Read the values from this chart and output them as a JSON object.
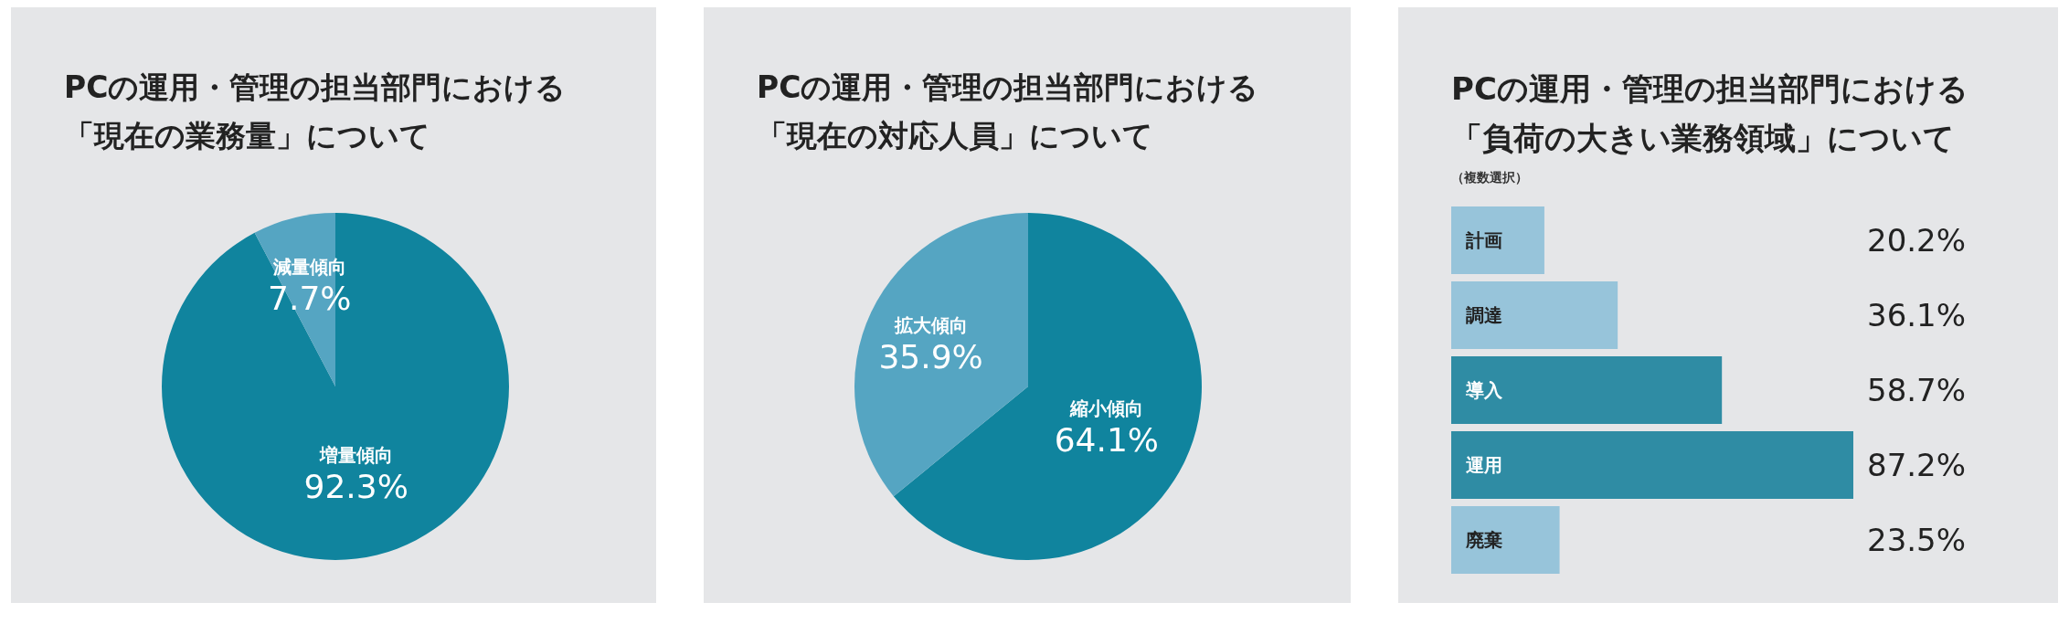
{
  "chart_data": [
    {
      "type": "pie",
      "title": "PCの運用・管理の担当部門における「現在の業務量」について",
      "categories": [
        "増量傾向",
        "減量傾向"
      ],
      "values": [
        92.3,
        7.7
      ],
      "colors": [
        "#10849e",
        "#55a5c2"
      ],
      "value_labels": [
        "92.3%",
        "7.7%"
      ]
    },
    {
      "type": "pie",
      "title": "PCの運用・管理の担当部門における「現在の対応人員」について",
      "categories": [
        "縮小傾向",
        "拡大傾向"
      ],
      "values": [
        64.1,
        35.9
      ],
      "colors": [
        "#10849e",
        "#55a5c2"
      ],
      "value_labels": [
        "64.1%",
        "35.9%"
      ]
    },
    {
      "type": "bar",
      "orientation": "horizontal",
      "title": "PCの運用・管理の担当部門における「負荷の大きい業務領域」について",
      "subtitle": "（複数選択）",
      "categories": [
        "計画",
        "調達",
        "導入",
        "運用",
        "廃棄"
      ],
      "values": [
        20.2,
        36.1,
        58.7,
        87.2,
        23.5
      ],
      "colors": [
        "#97c4da",
        "#97c4da",
        "#2f8ca4",
        "#2f8ca4",
        "#97c4da"
      ],
      "value_labels": [
        "20.2%",
        "36.1%",
        "58.7%",
        "87.2%",
        "23.5%"
      ]
    }
  ]
}
